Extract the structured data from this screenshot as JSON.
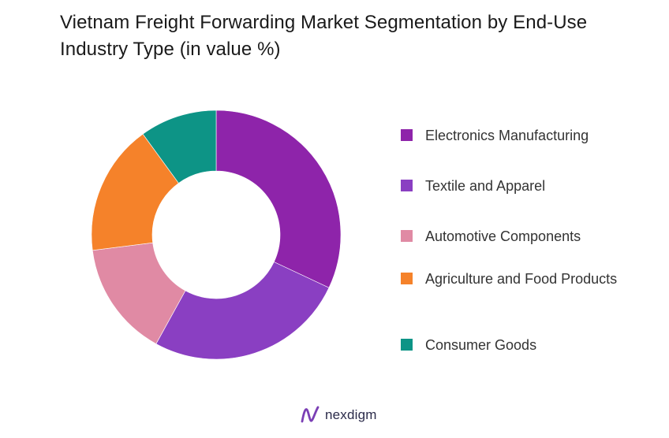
{
  "chart_data": {
    "type": "pie",
    "donut": true,
    "title": "Vietnam Freight Forwarding Market Segmentation by End-Use Industry Type (in value %)",
    "legend_position": "right",
    "slices": [
      {
        "label": "Electronics Manufacturing",
        "value": 32,
        "color": "#8e24aa"
      },
      {
        "label": "Textile and Apparel",
        "value": 26,
        "color": "#8a3fc2"
      },
      {
        "label": "Automotive Components",
        "value": 15,
        "color": "#e08aa4"
      },
      {
        "label": "Agriculture and Food Products",
        "value": 17,
        "color": "#f5822a"
      },
      {
        "label": "Consumer Goods",
        "value": 10,
        "color": "#0d9486"
      }
    ]
  },
  "brand": {
    "name": "nexdigm",
    "logo_icon": "nexdigm-logo-icon",
    "color": "#7b3fb5"
  }
}
